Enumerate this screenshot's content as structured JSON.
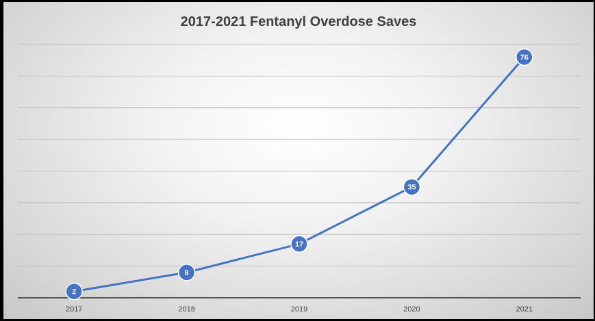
{
  "chart_data": {
    "type": "line",
    "title": "2017-2021 Fentanyl Overdose Saves",
    "xlabel": "",
    "ylabel": "",
    "categories": [
      "2017",
      "2018",
      "2019",
      "2020",
      "2021"
    ],
    "series": [
      {
        "values": [
          2,
          8,
          17,
          35,
          76
        ]
      }
    ],
    "ylim": [
      0,
      80
    ],
    "grid": true,
    "legend": "none",
    "colors": {
      "line": "#4472c4",
      "marker": "#4472c4",
      "grid": "#bfbfbf",
      "axis": "#262626",
      "label_text": "#ffffff"
    }
  }
}
